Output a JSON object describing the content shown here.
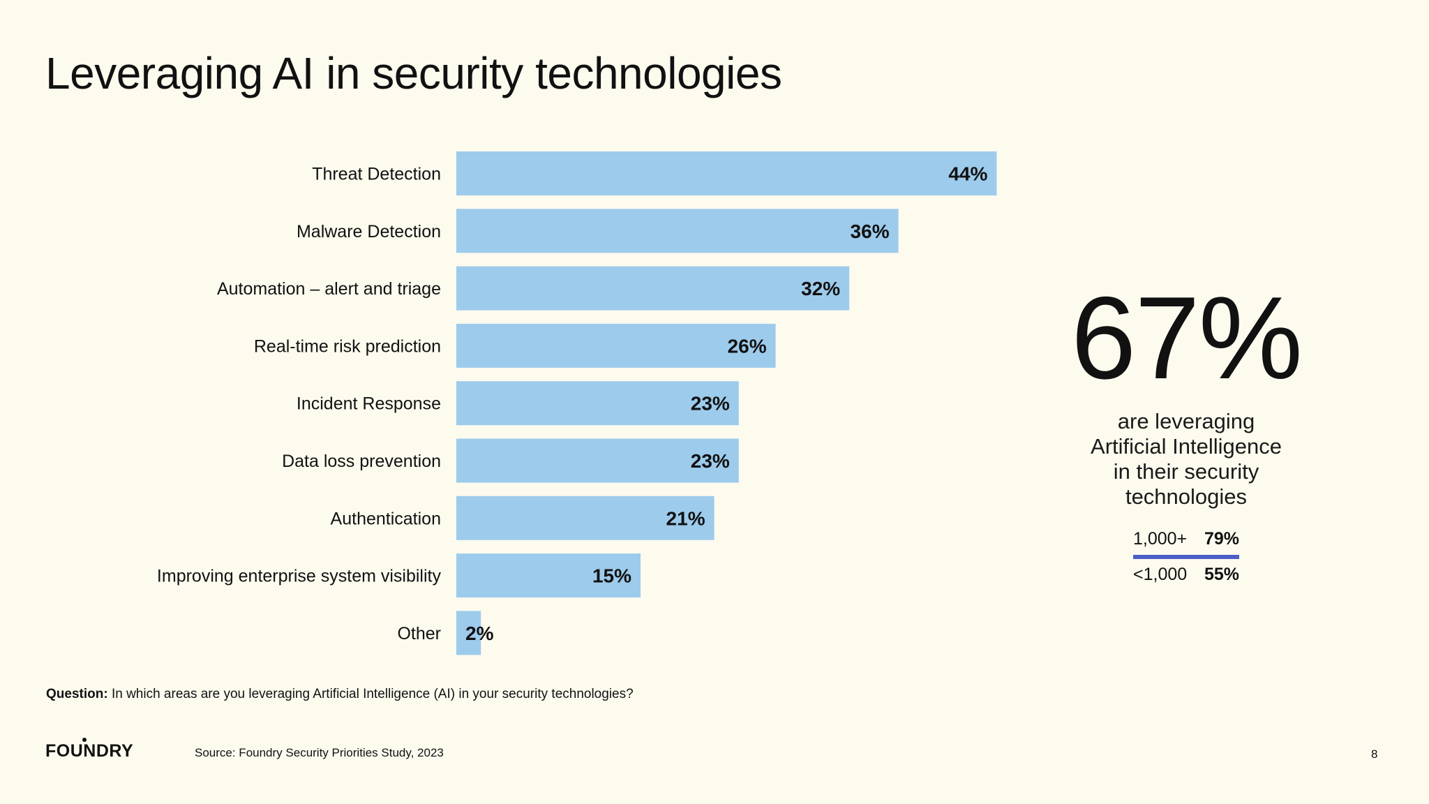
{
  "slide": {
    "title": "Leveraging AI in security technologies",
    "question_label": "Question:",
    "question_text": "In which areas are you leveraging Artificial Intelligence (AI) in your security technologies?",
    "source": "Source: Foundry Security Priorities Study, 2023",
    "logo": "FOUNDRY",
    "page_number": "8"
  },
  "callout": {
    "big_stat": "67%",
    "description_lines": [
      "are leveraging",
      "Artificial Intelligence",
      "in their security",
      "technologies"
    ],
    "breakdown": [
      {
        "label": "1,000+",
        "value": "79%"
      },
      {
        "label": "<1,000",
        "value": "55%"
      }
    ],
    "divider_color": "#4c5fc7"
  },
  "chart_data": {
    "type": "bar",
    "orientation": "horizontal",
    "categories": [
      "Threat Detection",
      "Malware Detection",
      "Automation – alert and triage",
      "Real-time risk prediction",
      "Incident Response",
      "Data loss prevention",
      "Authentication",
      "Improving enterprise system visibility",
      "Other"
    ],
    "values": [
      44,
      36,
      32,
      26,
      23,
      23,
      21,
      15,
      2
    ],
    "value_labels": [
      "44%",
      "36%",
      "32%",
      "26%",
      "23%",
      "23%",
      "21%",
      "15%",
      "2%"
    ],
    "title": "",
    "xlabel": "",
    "ylabel": "",
    "unit": "%",
    "bar_color": "#9dcbec",
    "grid": false,
    "legend": "none"
  }
}
